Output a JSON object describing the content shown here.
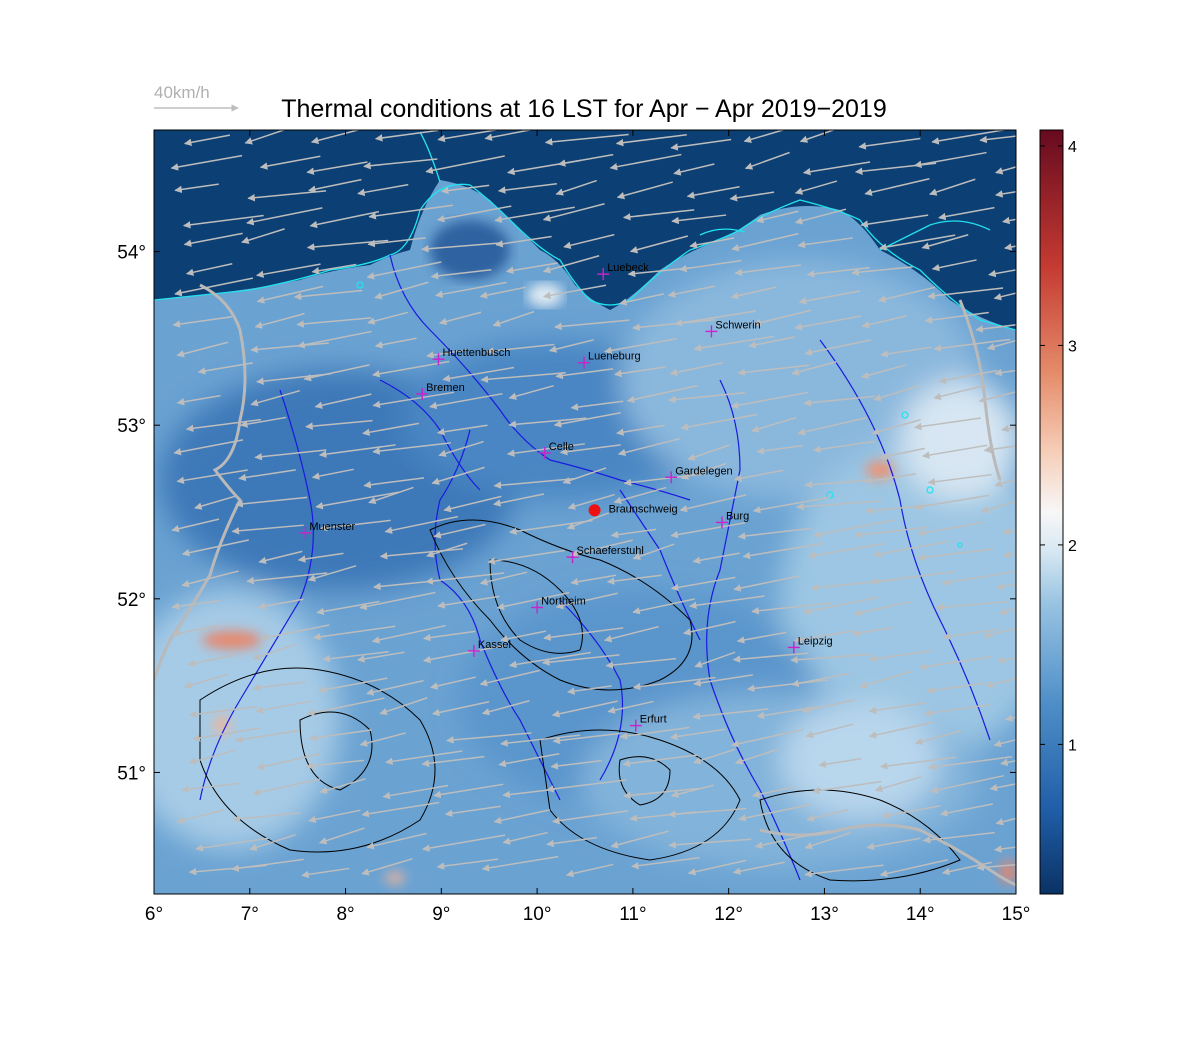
{
  "title": "Thermal conditions at 16 LST for Apr − Apr  2019−2019",
  "wind_reference": {
    "label": "40km/h"
  },
  "map": {
    "lon_range": [
      6,
      15
    ],
    "lat_range": [
      50.3,
      54.7
    ],
    "x_ticks": [
      {
        "value": 6,
        "label": "6°"
      },
      {
        "value": 7,
        "label": "7°"
      },
      {
        "value": 8,
        "label": "8°"
      },
      {
        "value": 9,
        "label": "9°"
      },
      {
        "value": 10,
        "label": "10°"
      },
      {
        "value": 11,
        "label": "11°"
      },
      {
        "value": 12,
        "label": "12°"
      },
      {
        "value": 13,
        "label": "13°"
      },
      {
        "value": 14,
        "label": "14°"
      },
      {
        "value": 15,
        "label": "15°"
      }
    ],
    "y_ticks": [
      {
        "value": 51,
        "label": "51°"
      },
      {
        "value": 52,
        "label": "52°"
      },
      {
        "value": 53,
        "label": "53°"
      },
      {
        "value": 54,
        "label": "54°"
      }
    ],
    "colors": {
      "sea": "#0c3f73",
      "coast": "#22e3f0",
      "rivers": "#1a1ae0",
      "contours": "#000000",
      "borders": "#b9b9b9",
      "wind_arrows": "#bdbdbd",
      "city_marker": "#cc22cc",
      "site_marker": "#ee1111"
    },
    "cities": [
      {
        "name": "Luebeck",
        "lon": 10.69,
        "lat": 53.87
      },
      {
        "name": "Schwerin",
        "lon": 11.82,
        "lat": 53.54
      },
      {
        "name": "Huettenbusch",
        "lon": 8.97,
        "lat": 53.38
      },
      {
        "name": "Lueneburg",
        "lon": 10.49,
        "lat": 53.36
      },
      {
        "name": "Bremen",
        "lon": 8.8,
        "lat": 53.18
      },
      {
        "name": "Celle",
        "lon": 10.08,
        "lat": 52.84
      },
      {
        "name": "Gardelegen",
        "lon": 11.4,
        "lat": 52.7
      },
      {
        "name": "Burg",
        "lon": 11.93,
        "lat": 52.44
      },
      {
        "name": "Muenster",
        "lon": 7.58,
        "lat": 52.38
      },
      {
        "name": "Schaeferstuhl",
        "lon": 10.37,
        "lat": 52.24
      },
      {
        "name": "Northeim",
        "lon": 10.0,
        "lat": 51.95
      },
      {
        "name": "Kassel",
        "lon": 9.34,
        "lat": 51.7
      },
      {
        "name": "Leipzig",
        "lon": 12.68,
        "lat": 51.72
      },
      {
        "name": "Erfurt",
        "lon": 11.03,
        "lat": 51.27
      }
    ],
    "site": {
      "name": "Braunschweig",
      "lon": 10.6,
      "lat": 52.51
    }
  },
  "colorbar": {
    "range": [
      0.25,
      4.08
    ],
    "ticks": [
      {
        "value": 1,
        "label": "1"
      },
      {
        "value": 2,
        "label": "2"
      },
      {
        "value": 3,
        "label": "3"
      },
      {
        "value": 4,
        "label": "4"
      }
    ],
    "stops": [
      "#0a3264",
      "#1f5ea8",
      "#4e8fc8",
      "#98c3e2",
      "#d8e8f2",
      "#f7f7f7",
      "#f6cdb7",
      "#e58d6b",
      "#c53b32",
      "#670a1f"
    ]
  }
}
